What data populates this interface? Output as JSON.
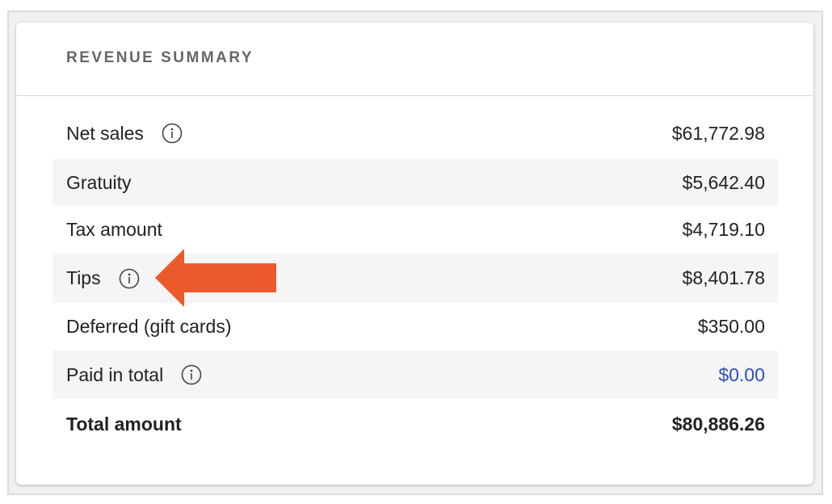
{
  "card": {
    "title": "REVENUE SUMMARY",
    "rows": [
      {
        "label": "Net sales",
        "amount": "$61,772.98",
        "info": true
      },
      {
        "label": "Gratuity",
        "amount": "$5,642.40",
        "info": false
      },
      {
        "label": "Tax amount",
        "amount": "$4,719.10",
        "info": false
      },
      {
        "label": "Tips",
        "amount": "$8,401.78",
        "info": true
      },
      {
        "label": "Deferred (gift cards)",
        "amount": "$350.00",
        "info": false
      },
      {
        "label": "Paid in total",
        "amount": "$0.00",
        "info": true
      },
      {
        "label": "Total amount",
        "amount": "$80,886.26",
        "info": false
      }
    ]
  },
  "colors": {
    "arrow": "#ec5a2b",
    "link_amount": "#2d4fb8"
  },
  "annotation": {
    "icon": "arrow-left-icon",
    "points_to": "Tips"
  }
}
